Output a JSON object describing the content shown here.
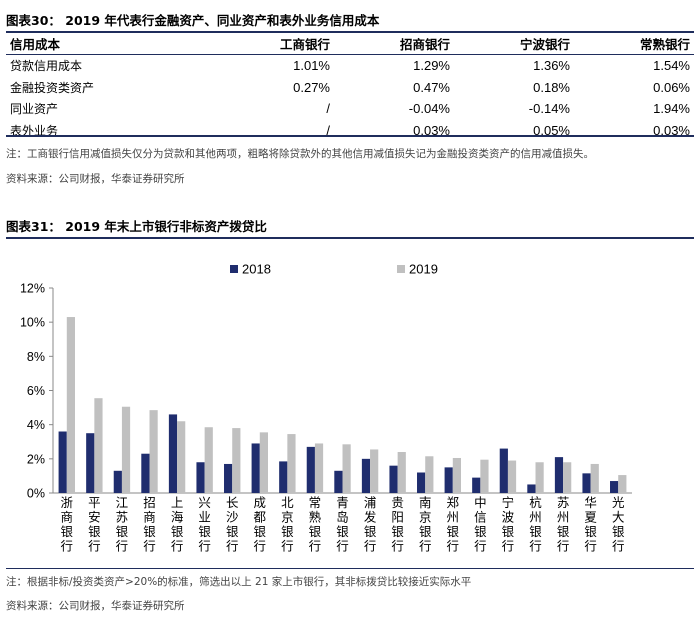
{
  "fig30": {
    "title": "图表30：  2019 年代表行金融资产、同业资产和表外业务信用成本",
    "headers": [
      "信用成本",
      "工商银行",
      "招商银行",
      "宁波银行",
      "常熟银行"
    ],
    "rows": [
      [
        "贷款信用成本",
        "1.01%",
        "1.29%",
        "1.36%",
        "1.54%"
      ],
      [
        "金融投资类资产",
        "0.27%",
        "0.47%",
        "0.18%",
        "0.06%"
      ],
      [
        "同业资产",
        "/",
        "-0.04%",
        "-0.14%",
        "1.94%"
      ],
      [
        "表外业务",
        "/",
        "0.03%",
        "0.05%",
        "0.03%"
      ]
    ],
    "note": "注：工商银行信用减值损失仅分为贷款和其他两项，粗略将除贷款外的其他信用减值损失记为金融投资类资产的信用减值损失。",
    "source": "资料来源：公司财报，华泰证券研究所"
  },
  "fig31": {
    "title": "图表31：  2019 年末上市银行非标资产拨贷比",
    "note": "注：根据非标/投资类资产>20%的标准，筛选出以上 21 家上市银行，其非标拨贷比较接近实际水平",
    "source": "资料来源：公司财报，华泰证券研究所"
  },
  "chart_data": {
    "type": "bar",
    "title": "",
    "categories": [
      "浙商银行",
      "平安银行",
      "江苏银行",
      "招商银行",
      "上海银行",
      "兴业银行",
      "长沙银行",
      "成都银行",
      "北京银行",
      "常熟银行",
      "青岛银行",
      "浦发银行",
      "贵阳银行",
      "南京银行",
      "郑州银行",
      "中信银行",
      "宁波银行",
      "杭州银行",
      "苏州银行",
      "华夏银行",
      "光大银行"
    ],
    "series": [
      {
        "name": "2018",
        "color": "#1f2d6e",
        "values": [
          3.6,
          3.5,
          1.3,
          2.3,
          4.6,
          1.8,
          1.7,
          2.9,
          1.85,
          2.7,
          1.3,
          2.0,
          1.6,
          1.2,
          1.5,
          0.9,
          2.6,
          0.5,
          2.1,
          1.15,
          0.7
        ]
      },
      {
        "name": "2019",
        "color": "#c0c0c0",
        "values": [
          10.3,
          5.55,
          5.05,
          4.85,
          4.2,
          3.85,
          3.8,
          3.55,
          3.45,
          2.9,
          2.85,
          2.55,
          2.4,
          2.15,
          2.05,
          1.95,
          1.9,
          1.8,
          1.8,
          1.7,
          1.05
        ]
      }
    ],
    "ylim": [
      0,
      12
    ],
    "yticks": [
      "0%",
      "2%",
      "4%",
      "6%",
      "8%",
      "10%",
      "12%"
    ],
    "grid": false,
    "legend": "top"
  }
}
